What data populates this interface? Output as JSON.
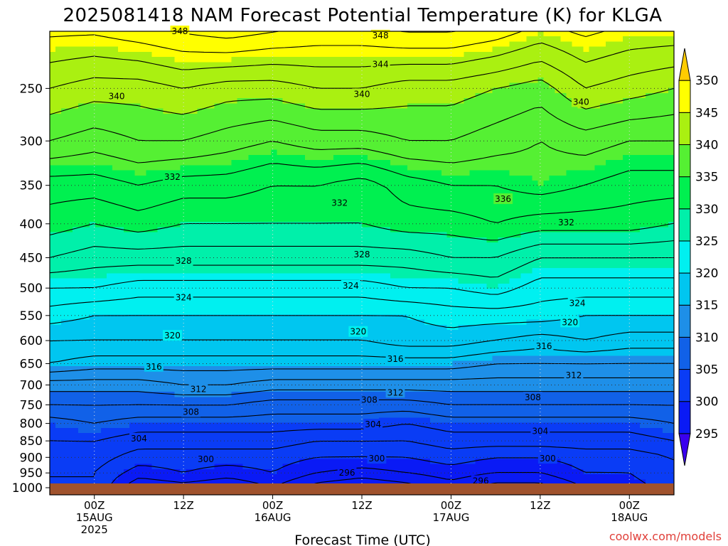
{
  "title": "2025081418 NAM Forecast Potential Temperature (K) for KLGA",
  "watermark": "coolwx.com/models",
  "chart_data": {
    "type": "heatmap",
    "title": "2025081418 NAM Forecast Potential Temperature (K) for KLGA",
    "xlabel": "Forecast Time (UTC)",
    "ylabel": "",
    "x_ticks": [
      {
        "t": 6,
        "lines": [
          "00Z",
          "15AUG",
          "2025"
        ]
      },
      {
        "t": 18,
        "lines": [
          "12Z"
        ]
      },
      {
        "t": 30,
        "lines": [
          "00Z",
          "16AUG"
        ]
      },
      {
        "t": 42,
        "lines": [
          "12Z"
        ]
      },
      {
        "t": 54,
        "lines": [
          "00Z",
          "17AUG"
        ]
      },
      {
        "t": 66,
        "lines": [
          "12Z"
        ]
      },
      {
        "t": 78,
        "lines": [
          "00Z",
          "18AUG"
        ]
      }
    ],
    "xlim": [
      0,
      84
    ],
    "y_ticks": [
      250,
      300,
      350,
      400,
      450,
      500,
      550,
      600,
      650,
      700,
      750,
      800,
      850,
      900,
      950,
      1000
    ],
    "ylim": [
      1000,
      200
    ],
    "y_scale": "log-pressure",
    "x_hours": [
      0,
      6,
      12,
      18,
      24,
      30,
      36,
      42,
      48,
      54,
      60,
      66,
      72,
      78,
      84
    ],
    "levels_hPa": [
      1000,
      950,
      900,
      850,
      800,
      750,
      700,
      650,
      600,
      550,
      500,
      450,
      400,
      350,
      300,
      250,
      200
    ],
    "theta_K": [
      [
        302,
        302,
        296,
        297,
        296,
        298,
        295,
        294,
        295,
        297,
        295,
        295,
        298,
        299,
        301
      ],
      [
        302,
        302,
        299,
        300,
        299,
        300,
        298,
        297,
        298,
        299,
        298,
        298,
        300,
        300,
        302
      ],
      [
        303,
        303,
        301,
        301,
        301,
        301,
        300,
        300,
        300,
        301,
        300,
        300,
        301,
        301,
        302
      ],
      [
        304,
        304,
        303,
        303,
        303,
        303,
        302,
        302,
        302,
        303,
        303,
        303,
        303,
        303,
        304
      ],
      [
        305,
        306,
        305,
        305,
        305,
        305,
        305,
        305,
        304,
        305,
        305,
        305,
        305,
        305,
        306
      ],
      [
        308,
        308,
        308,
        308,
        308,
        307,
        307,
        307,
        307,
        308,
        308,
        308,
        308,
        308,
        308
      ],
      [
        311,
        311,
        311,
        312,
        312,
        311,
        311,
        311,
        311,
        311,
        311,
        311,
        311,
        311,
        311
      ],
      [
        316,
        315,
        315,
        315,
        315,
        315,
        315,
        315,
        315,
        315,
        314,
        314,
        314,
        314,
        314
      ],
      [
        318,
        318,
        318,
        318,
        318,
        318,
        318,
        318,
        319,
        319,
        318,
        317,
        318,
        317,
        317
      ],
      [
        321,
        320,
        320,
        320,
        320,
        320,
        320,
        320,
        320,
        321,
        321,
        321,
        320,
        320,
        320
      ],
      [
        324,
        324,
        323,
        323,
        323,
        323,
        323,
        323,
        324,
        324,
        325,
        323,
        323,
        323,
        323
      ],
      [
        328,
        327,
        327,
        327,
        327,
        327,
        327,
        327,
        327,
        328,
        328,
        326,
        326,
        326,
        326
      ],
      [
        331,
        330,
        331,
        330,
        330,
        330,
        330,
        330,
        331,
        331,
        332,
        331,
        331,
        331,
        330
      ],
      [
        333,
        333,
        334,
        333,
        333,
        332,
        332,
        331,
        333,
        334,
        334,
        335,
        334,
        333,
        333
      ],
      [
        338,
        337,
        338,
        338,
        337,
        336,
        337,
        337,
        338,
        338,
        337,
        336,
        337,
        336,
        336
      ],
      [
        342,
        341,
        341,
        342,
        341,
        341,
        342,
        342,
        341,
        341,
        340,
        339,
        342,
        341,
        340
      ],
      [
        347,
        347,
        348,
        349,
        350,
        349,
        348,
        348,
        349,
        349,
        348,
        346,
        347,
        346,
        346
      ]
    ],
    "colorbar": {
      "ticks": [
        295,
        300,
        305,
        310,
        315,
        320,
        325,
        330,
        335,
        340,
        345,
        350
      ],
      "range": [
        290,
        355
      ],
      "colors": [
        {
          "lo": 290,
          "hi": 295,
          "color": "#3a00ee"
        },
        {
          "lo": 295,
          "hi": 300,
          "color": "#0a1af5"
        },
        {
          "lo": 300,
          "hi": 305,
          "color": "#0a3cf5"
        },
        {
          "lo": 305,
          "hi": 310,
          "color": "#1161e8"
        },
        {
          "lo": 310,
          "hi": 315,
          "color": "#1e8fe8"
        },
        {
          "lo": 315,
          "hi": 320,
          "color": "#00c6f0"
        },
        {
          "lo": 320,
          "hi": 325,
          "color": "#00f0f0"
        },
        {
          "lo": 325,
          "hi": 330,
          "color": "#00f0aa"
        },
        {
          "lo": 330,
          "hi": 335,
          "color": "#00f050"
        },
        {
          "lo": 335,
          "hi": 340,
          "color": "#55f033"
        },
        {
          "lo": 340,
          "hi": 345,
          "color": "#aaf011"
        },
        {
          "lo": 345,
          "hi": 350,
          "color": "#ffff00"
        },
        {
          "lo": 350,
          "hi": 355,
          "color": "#ffcc00"
        }
      ]
    },
    "contour_interval_K": 2,
    "contour_labels": [
      {
        "v": 348,
        "t": 17.5,
        "p": 205
      },
      {
        "v": 348,
        "t": 44.5,
        "p": 208
      },
      {
        "v": 344,
        "t": 44.5,
        "p": 230
      },
      {
        "v": 340,
        "t": 9,
        "p": 257
      },
      {
        "v": 340,
        "t": 42,
        "p": 255
      },
      {
        "v": 340,
        "t": 71.5,
        "p": 262
      },
      {
        "v": 332,
        "t": 16.5,
        "p": 340
      },
      {
        "v": 332,
        "t": 39,
        "p": 372
      },
      {
        "v": 336,
        "t": 61,
        "p": 367
      },
      {
        "v": 332,
        "t": 69.5,
        "p": 398
      },
      {
        "v": 328,
        "t": 18,
        "p": 455
      },
      {
        "v": 328,
        "t": 42,
        "p": 445
      },
      {
        "v": 324,
        "t": 18,
        "p": 517
      },
      {
        "v": 324,
        "t": 40.5,
        "p": 496
      },
      {
        "v": 324,
        "t": 71,
        "p": 527
      },
      {
        "v": 320,
        "t": 16.5,
        "p": 590
      },
      {
        "v": 320,
        "t": 41.5,
        "p": 582
      },
      {
        "v": 320,
        "t": 70,
        "p": 563
      },
      {
        "v": 316,
        "t": 14,
        "p": 657
      },
      {
        "v": 316,
        "t": 46.5,
        "p": 640
      },
      {
        "v": 316,
        "t": 66.5,
        "p": 612
      },
      {
        "v": 312,
        "t": 20,
        "p": 710
      },
      {
        "v": 312,
        "t": 46.5,
        "p": 719
      },
      {
        "v": 312,
        "t": 70.5,
        "p": 677
      },
      {
        "v": 308,
        "t": 19,
        "p": 769
      },
      {
        "v": 308,
        "t": 43,
        "p": 737
      },
      {
        "v": 308,
        "t": 65,
        "p": 731
      },
      {
        "v": 304,
        "t": 12,
        "p": 843
      },
      {
        "v": 304,
        "t": 43.5,
        "p": 803
      },
      {
        "v": 304,
        "t": 66,
        "p": 822
      },
      {
        "v": 300,
        "t": 21,
        "p": 906
      },
      {
        "v": 300,
        "t": 44,
        "p": 904
      },
      {
        "v": 300,
        "t": 67,
        "p": 904
      },
      {
        "v": 296,
        "t": 40,
        "p": 950
      },
      {
        "v": 296,
        "t": 58,
        "p": 977
      }
    ],
    "grid": true,
    "ground_color": "#a0522d"
  }
}
